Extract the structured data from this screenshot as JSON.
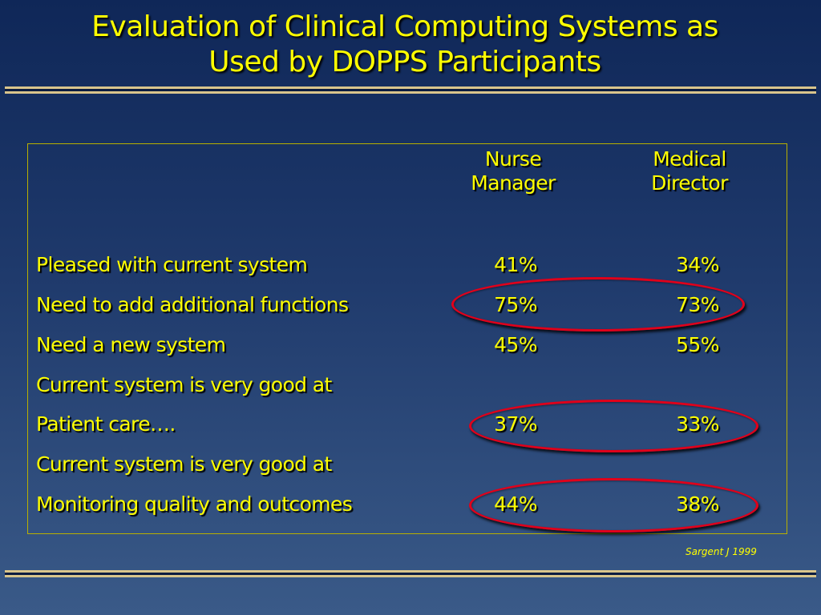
{
  "title_line1": "Evaluation of Clinical Computing Systems as",
  "title_line2": "Used by DOPPS Participants",
  "table": {
    "col1_line1": "Nurse",
    "col1_line2": "Manager",
    "col2_line1": "Medical",
    "col2_line2": "Director",
    "rows": [
      {
        "label": "Pleased with current system",
        "nurse_manager": "41%",
        "medical_director": "34%"
      },
      {
        "label": "Need to add additional functions",
        "nurse_manager": "75%",
        "medical_director": "73%"
      },
      {
        "label": "Need a new system",
        "nurse_manager": "45%",
        "medical_director": "55%"
      },
      {
        "label": "Current system is very good at",
        "nurse_manager": "",
        "medical_director": ""
      },
      {
        "label": "Patient care….",
        "nurse_manager": "37%",
        "medical_director": "33%"
      },
      {
        "label": "Current system is very good at",
        "nurse_manager": "",
        "medical_director": ""
      },
      {
        "label": "Monitoring quality and outcomes",
        "nurse_manager": "44%",
        "medical_director": "38%"
      }
    ]
  },
  "highlighted_rows": [
    "Need to add additional functions",
    "Patient care….",
    "Monitoring quality and outcomes"
  ],
  "colors": {
    "text": "#ffff00",
    "highlight": "#e0001a",
    "rule": "#d9c58c"
  },
  "citation": "Sargent J 1999"
}
